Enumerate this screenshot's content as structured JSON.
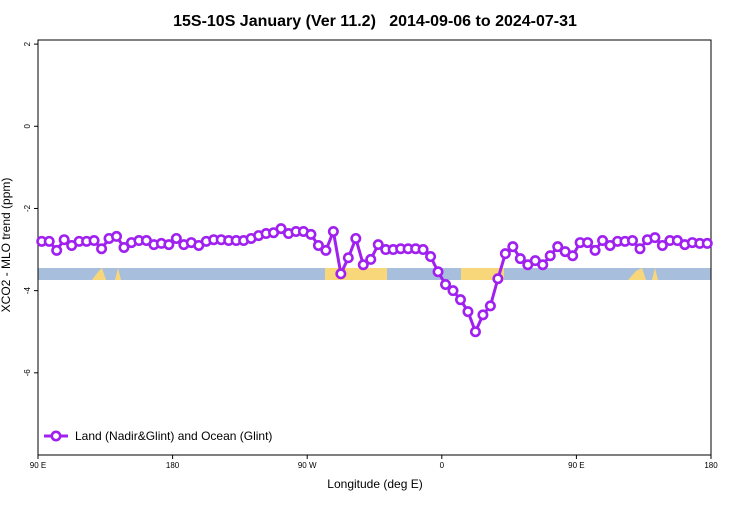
{
  "chart_data": {
    "type": "line",
    "title": "15S-10S January (Ver 11.2)   2014-09-06 to 2024-07-31",
    "x_label": "Longitude (deg E)",
    "y_label": "XCO2 - MLO trend (ppm)",
    "xlim": [
      90,
      540
    ],
    "xticks": [
      {
        "value": 90,
        "label": "90 E"
      },
      {
        "value": 180,
        "label": "180"
      },
      {
        "value": 270,
        "label": "90 W"
      },
      {
        "value": 360,
        "label": "0"
      },
      {
        "value": 450,
        "label": "90 E"
      },
      {
        "value": 540,
        "label": "180"
      }
    ],
    "ylim": [
      -8,
      2.1
    ],
    "yticks": [
      2,
      0,
      -2,
      -4,
      -6
    ],
    "legend_position": "bottom-left",
    "x": [
      92.5,
      97.5,
      102.5,
      107.5,
      112.5,
      117.5,
      122.5,
      127.5,
      132.5,
      137.5,
      142.5,
      147.5,
      152.5,
      157.5,
      162.5,
      167.5,
      172.5,
      177.5,
      182.5,
      187.5,
      192.5,
      197.5,
      202.5,
      207.5,
      212.5,
      217.5,
      222.5,
      227.5,
      232.5,
      237.5,
      242.5,
      247.5,
      252.5,
      257.5,
      262.5,
      267.5,
      272.5,
      277.5,
      282.5,
      287.5,
      292.5,
      297.5,
      302.5,
      307.5,
      312.5,
      317.5,
      322.5,
      327.5,
      332.5,
      337.5,
      342.5,
      347.5,
      352.5,
      357.5,
      362.5,
      367.5,
      372.5,
      377.5,
      382.5,
      387.5,
      392.5,
      397.5,
      402.5,
      407.5,
      412.5,
      417.5,
      422.5,
      427.5,
      432.5,
      437.5,
      442.5,
      447.5,
      452.5,
      457.5,
      462.5,
      467.5,
      472.5,
      477.5,
      482.5,
      487.5,
      492.5,
      497.5,
      502.5,
      507.5,
      512.5,
      517.5,
      522.5,
      527.5,
      532.5,
      537.5
    ],
    "series": [
      {
        "name": "Land (Nadir&Glint) and Ocean (Glint)",
        "color": "#a020f0",
        "values": [
          -2.8,
          -2.8,
          -3.02,
          -2.76,
          -2.9,
          -2.8,
          -2.8,
          -2.78,
          -2.98,
          -2.73,
          -2.68,
          -2.95,
          -2.83,
          -2.78,
          -2.78,
          -2.88,
          -2.85,
          -2.88,
          -2.73,
          -2.88,
          -2.83,
          -2.9,
          -2.8,
          -2.76,
          -2.76,
          -2.78,
          -2.78,
          -2.78,
          -2.73,
          -2.66,
          -2.61,
          -2.59,
          -2.49,
          -2.61,
          -2.56,
          -2.56,
          -2.63,
          -2.9,
          -3.02,
          -2.56,
          -3.59,
          -3.2,
          -2.73,
          -3.37,
          -3.24,
          -2.88,
          -3.0,
          -3.0,
          -2.98,
          -2.98,
          -2.98,
          -3.0,
          -3.17,
          -3.54,
          -3.85,
          -4.0,
          -4.22,
          -4.51,
          -5.0,
          -4.59,
          -4.37,
          -3.71,
          -3.1,
          -2.93,
          -3.22,
          -3.37,
          -3.27,
          -3.37,
          -3.15,
          -2.93,
          -3.05,
          -3.15,
          -2.83,
          -2.83,
          -3.02,
          -2.78,
          -2.9,
          -2.8,
          -2.8,
          -2.78,
          -2.98,
          -2.76,
          -2.71,
          -2.9,
          -2.78,
          -2.78,
          -2.88,
          -2.83,
          -2.85,
          -2.85
        ]
      }
    ]
  }
}
